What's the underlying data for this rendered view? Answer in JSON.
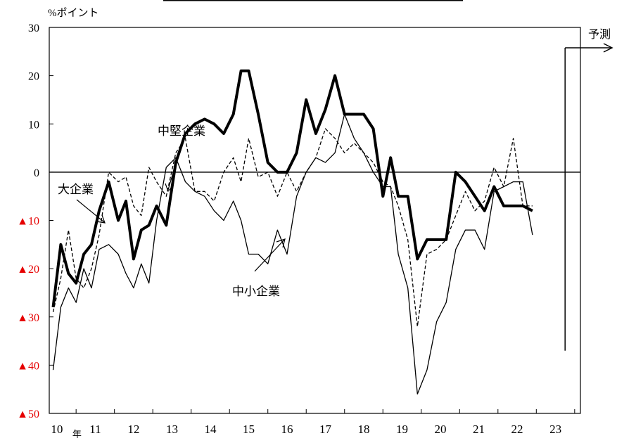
{
  "chart_data": {
    "type": "line",
    "title": "",
    "ylabel": "%ポイント",
    "xlabel": "",
    "year_unit": "年",
    "forecast_label": "予測",
    "ylim": [
      -50,
      30
    ],
    "yticks": [
      30,
      20,
      10,
      0,
      -10,
      -20,
      -30,
      -40,
      -50
    ],
    "ytick_labels": [
      "30",
      "20",
      "10",
      "0",
      "▲10",
      "▲20",
      "▲30",
      "▲40",
      "▲50"
    ],
    "negative_tick_color": "#e60000",
    "xticks": [
      {
        "label": "10",
        "x": 2010
      },
      {
        "label": "11",
        "x": 2011
      },
      {
        "label": "12",
        "x": 2012
      },
      {
        "label": "13",
        "x": 2013
      },
      {
        "label": "14",
        "x": 2014
      },
      {
        "label": "15",
        "x": 2015
      },
      {
        "label": "16",
        "x": 2016
      },
      {
        "label": "17",
        "x": 2017
      },
      {
        "label": "18",
        "x": 2018
      },
      {
        "label": "19",
        "x": 2019
      },
      {
        "label": "20",
        "x": 2020
      },
      {
        "label": "21",
        "x": 2021
      },
      {
        "label": "22",
        "x": 2022
      },
      {
        "label": "23",
        "x": 2023
      }
    ],
    "xlim": [
      2009.3,
      2023.15
    ],
    "forecast_start": 2022.75,
    "grid": false,
    "series": [
      {
        "name": "大企業",
        "style": "bold",
        "points": [
          [
            2009.4,
            -28
          ],
          [
            2009.6,
            -15
          ],
          [
            2009.8,
            -21
          ],
          [
            2010.0,
            -23
          ],
          [
            2010.2,
            -17
          ],
          [
            2010.4,
            -15
          ],
          [
            2010.6,
            -8
          ],
          [
            2010.85,
            -2
          ],
          [
            2011.1,
            -10
          ],
          [
            2011.3,
            -6
          ],
          [
            2011.5,
            -18
          ],
          [
            2011.7,
            -12
          ],
          [
            2011.9,
            -11
          ],
          [
            2012.1,
            -7
          ],
          [
            2012.35,
            -11
          ],
          [
            2012.6,
            2
          ],
          [
            2012.85,
            8
          ],
          [
            2013.1,
            10
          ],
          [
            2013.35,
            11
          ],
          [
            2013.6,
            10
          ],
          [
            2013.85,
            8
          ],
          [
            2014.1,
            12
          ],
          [
            2014.3,
            21
          ],
          [
            2014.5,
            21
          ],
          [
            2014.75,
            12
          ],
          [
            2015.0,
            2
          ],
          [
            2015.25,
            0
          ],
          [
            2015.5,
            0
          ],
          [
            2015.75,
            4
          ],
          [
            2016.0,
            15
          ],
          [
            2016.25,
            8
          ],
          [
            2016.5,
            13
          ],
          [
            2016.75,
            20
          ],
          [
            2017.0,
            12
          ],
          [
            2017.25,
            12
          ],
          [
            2017.5,
            12
          ],
          [
            2017.75,
            9
          ],
          [
            2018.0,
            -5
          ],
          [
            2018.2,
            3
          ],
          [
            2018.4,
            -5
          ],
          [
            2018.65,
            -5
          ],
          [
            2018.9,
            -18
          ],
          [
            2019.15,
            -14
          ],
          [
            2019.4,
            -14
          ],
          [
            2019.65,
            -14
          ],
          [
            2019.9,
            0
          ],
          [
            2020.15,
            -2
          ],
          [
            2020.4,
            -5
          ],
          [
            2020.65,
            -8
          ],
          [
            2020.9,
            -3
          ],
          [
            2021.15,
            -7
          ],
          [
            2021.4,
            -7
          ],
          [
            2021.65,
            -7
          ],
          [
            2021.9,
            -8
          ]
        ]
      },
      {
        "name": "中堅企業",
        "style": "dashed",
        "points": [
          [
            2009.4,
            -29
          ],
          [
            2009.6,
            -22
          ],
          [
            2009.8,
            -12
          ],
          [
            2010.0,
            -22
          ],
          [
            2010.2,
            -24
          ],
          [
            2010.4,
            -20
          ],
          [
            2010.6,
            -13
          ],
          [
            2010.85,
            0
          ],
          [
            2011.1,
            -2
          ],
          [
            2011.3,
            -1
          ],
          [
            2011.5,
            -7
          ],
          [
            2011.7,
            -9
          ],
          [
            2011.9,
            1
          ],
          [
            2012.1,
            -2
          ],
          [
            2012.35,
            -5
          ],
          [
            2012.6,
            4
          ],
          [
            2012.85,
            7
          ],
          [
            2013.1,
            -4
          ],
          [
            2013.35,
            -4
          ],
          [
            2013.6,
            -6
          ],
          [
            2013.85,
            0
          ],
          [
            2014.1,
            3
          ],
          [
            2014.3,
            -2
          ],
          [
            2014.5,
            7
          ],
          [
            2014.75,
            -1
          ],
          [
            2015.0,
            0
          ],
          [
            2015.25,
            -5
          ],
          [
            2015.5,
            0
          ],
          [
            2015.75,
            -4
          ],
          [
            2016.0,
            0
          ],
          [
            2016.25,
            3
          ],
          [
            2016.5,
            9
          ],
          [
            2016.75,
            7
          ],
          [
            2017.0,
            4
          ],
          [
            2017.25,
            6
          ],
          [
            2017.5,
            4
          ],
          [
            2017.75,
            2
          ],
          [
            2018.0,
            -2
          ],
          [
            2018.2,
            -3
          ],
          [
            2018.4,
            -7
          ],
          [
            2018.65,
            -14
          ],
          [
            2018.9,
            -32
          ],
          [
            2019.15,
            -17
          ],
          [
            2019.4,
            -16
          ],
          [
            2019.65,
            -14
          ],
          [
            2019.9,
            -9
          ],
          [
            2020.15,
            -4
          ],
          [
            2020.4,
            -8
          ],
          [
            2020.65,
            -6
          ],
          [
            2020.9,
            1
          ],
          [
            2021.15,
            -3
          ],
          [
            2021.4,
            7
          ],
          [
            2021.65,
            -7
          ],
          [
            2021.9,
            -7
          ]
        ]
      },
      {
        "name": "中小企業",
        "style": "thin",
        "points": [
          [
            2009.4,
            -41
          ],
          [
            2009.6,
            -28
          ],
          [
            2009.8,
            -24
          ],
          [
            2010.0,
            -27
          ],
          [
            2010.2,
            -20
          ],
          [
            2010.4,
            -24
          ],
          [
            2010.6,
            -16
          ],
          [
            2010.85,
            -15
          ],
          [
            2011.1,
            -17
          ],
          [
            2011.3,
            -21
          ],
          [
            2011.5,
            -24
          ],
          [
            2011.7,
            -19
          ],
          [
            2011.9,
            -23
          ],
          [
            2012.1,
            -10
          ],
          [
            2012.35,
            1
          ],
          [
            2012.6,
            3
          ],
          [
            2012.85,
            -2
          ],
          [
            2013.1,
            -4
          ],
          [
            2013.35,
            -5
          ],
          [
            2013.6,
            -8
          ],
          [
            2013.85,
            -10
          ],
          [
            2014.1,
            -6
          ],
          [
            2014.3,
            -10
          ],
          [
            2014.5,
            -17
          ],
          [
            2014.75,
            -17
          ],
          [
            2015.0,
            -19
          ],
          [
            2015.25,
            -12
          ],
          [
            2015.5,
            -17
          ],
          [
            2015.75,
            -5
          ],
          [
            2016.0,
            0
          ],
          [
            2016.25,
            3
          ],
          [
            2016.5,
            2
          ],
          [
            2016.75,
            4
          ],
          [
            2017.0,
            12
          ],
          [
            2017.25,
            7
          ],
          [
            2017.5,
            4
          ],
          [
            2017.75,
            0
          ],
          [
            2018.0,
            -3
          ],
          [
            2018.2,
            -3
          ],
          [
            2018.4,
            -17
          ],
          [
            2018.65,
            -24
          ],
          [
            2018.9,
            -46
          ],
          [
            2019.15,
            -41
          ],
          [
            2019.4,
            -31
          ],
          [
            2019.65,
            -27
          ],
          [
            2019.9,
            -16
          ],
          [
            2020.15,
            -12
          ],
          [
            2020.4,
            -12
          ],
          [
            2020.65,
            -16
          ],
          [
            2020.9,
            -4
          ],
          [
            2021.15,
            -3
          ],
          [
            2021.4,
            -2
          ],
          [
            2021.65,
            -2
          ],
          [
            2021.9,
            -13
          ]
        ]
      }
    ],
    "annotations": [
      {
        "text": "中堅企業",
        "series": "中堅企業"
      },
      {
        "text": "大企業",
        "series": "大企業"
      },
      {
        "text": "中小企業",
        "series": "中小企業"
      }
    ]
  }
}
